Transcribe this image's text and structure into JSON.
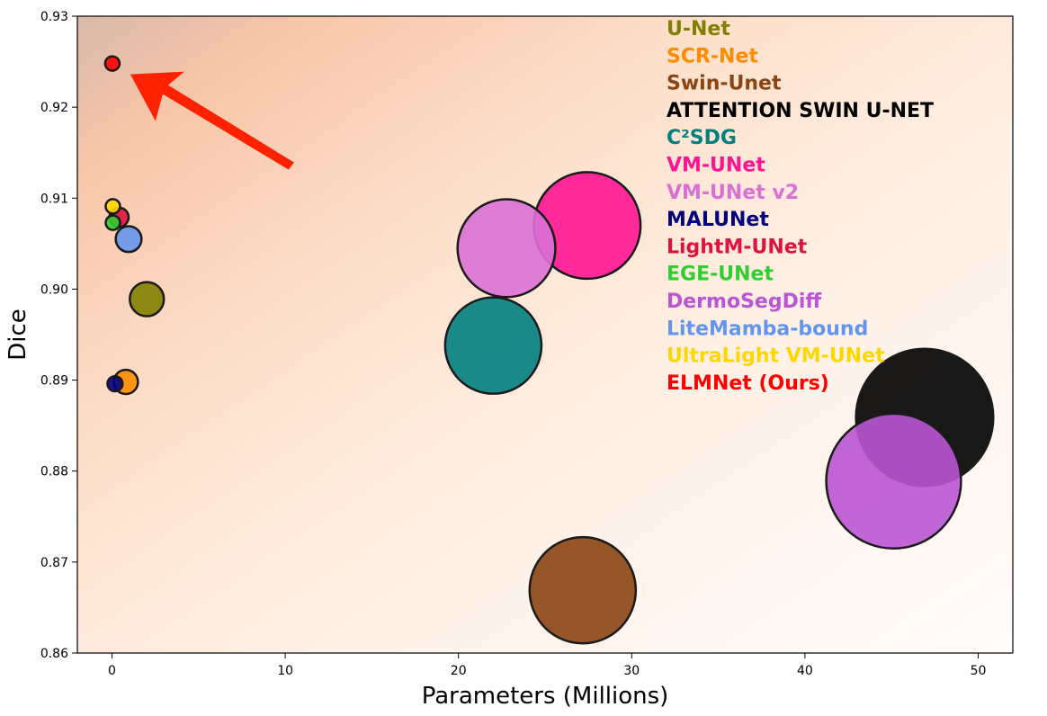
{
  "chart_data": {
    "type": "scatter",
    "title": "",
    "xlabel": "Parameters (Millions)",
    "ylabel": "Dice",
    "xlim": [
      -2,
      52
    ],
    "ylim": [
      0.86,
      0.93
    ],
    "xticks": [
      0,
      10,
      20,
      30,
      40,
      50
    ],
    "yticks": [
      0.86,
      0.87,
      0.88,
      0.89,
      0.9,
      0.91,
      0.92,
      0.93
    ],
    "xtick_labels": [
      "0",
      "10",
      "20",
      "30",
      "40",
      "50"
    ],
    "ytick_labels": [
      "0.86",
      "0.87",
      "0.88",
      "0.89",
      "0.90",
      "0.91",
      "0.92",
      "0.93"
    ],
    "grid": false,
    "legend_position": "top-right",
    "series": [
      {
        "name": "U-Net",
        "x": 2.01,
        "y": 0.8989,
        "color": "#808000"
      },
      {
        "name": "SCR-Net",
        "x": 0.8,
        "y": 0.8898,
        "color": "#FF8C00"
      },
      {
        "name": "Swin-Unet",
        "x": 27.17,
        "y": 0.8669,
        "color": "#8B4513"
      },
      {
        "name": "ATTENTION SWIN U-NET",
        "x": 46.91,
        "y": 0.8859,
        "color": "#000000"
      },
      {
        "name": "C²SDG",
        "x": 22.01,
        "y": 0.8938,
        "color": "#008080"
      },
      {
        "name": "VM-UNet",
        "x": 27.43,
        "y": 0.907,
        "color": "#FF1493"
      },
      {
        "name": "VM-UNet v2",
        "x": 22.77,
        "y": 0.9045,
        "color": "#DA70D6"
      },
      {
        "name": "MALUNet",
        "x": 0.175,
        "y": 0.8896,
        "color": "#000080"
      },
      {
        "name": "LightM-UNet",
        "x": 0.403,
        "y": 0.9079,
        "color": "#DC143C"
      },
      {
        "name": "EGE-UNet",
        "x": 0.053,
        "y": 0.9073,
        "color": "#32CD32"
      },
      {
        "name": "DermoSegDiff",
        "x": 45.12,
        "y": 0.8789,
        "color": "#BA55D3"
      },
      {
        "name": "LiteMamba-bound",
        "x": 0.96,
        "y": 0.9055,
        "color": "#6495ED"
      },
      {
        "name": "UltraLight VM-UNet",
        "x": 0.049,
        "y": 0.9091,
        "color": "#FFD700"
      },
      {
        "name": "ELMNet (Ours)",
        "x": 0.02,
        "y": 0.9248,
        "color": "#FF0000"
      }
    ]
  }
}
